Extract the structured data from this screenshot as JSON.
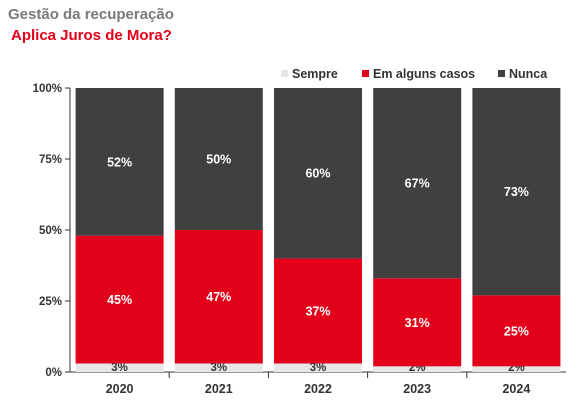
{
  "header": {
    "title": "Gestão da recuperação",
    "subtitle": "Aplica Juros de Mora?"
  },
  "chart_data": {
    "type": "bar",
    "stacked": true,
    "percent": true,
    "categories": [
      "2020",
      "2021",
      "2022",
      "2023",
      "2024"
    ],
    "series": [
      {
        "name": "Sempre",
        "values": [
          3,
          3,
          3,
          2,
          2
        ],
        "color": "#e6e6e6",
        "labels": [
          "3%",
          "3%",
          "3%",
          "2%",
          "2%"
        ]
      },
      {
        "name": "Em alguns casos",
        "values": [
          45,
          47,
          37,
          31,
          25
        ],
        "color": "#e2001a",
        "labels": [
          "45%",
          "47%",
          "37%",
          "31%",
          "25%"
        ]
      },
      {
        "name": "Nunca",
        "values": [
          52,
          50,
          60,
          67,
          73
        ],
        "color": "#404040",
        "labels": [
          "52%",
          "50%",
          "60%",
          "67%",
          "73%"
        ]
      }
    ],
    "yticks": [
      "0%",
      "25%",
      "50%",
      "75%",
      "100%"
    ],
    "ylim": [
      0,
      100
    ],
    "legend_position": "top-right",
    "grid": false
  }
}
